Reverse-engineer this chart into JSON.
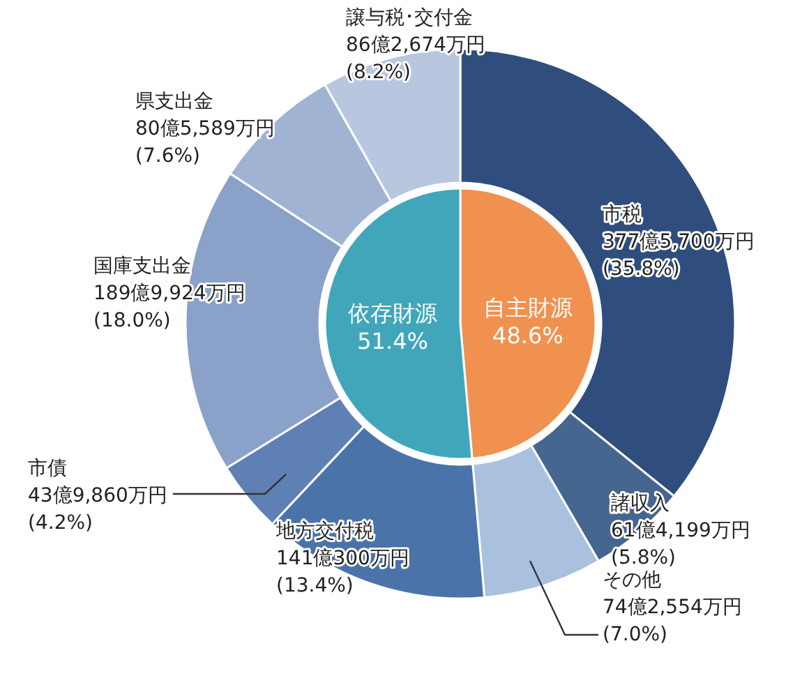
{
  "chart_data": [
    {
      "type": "donut",
      "categories": [
        "市税",
        "諸収入",
        "その他",
        "地方交付税",
        "市債",
        "国庫支出金",
        "県支出金",
        "譲与税･交付金"
      ],
      "values": [
        35.8,
        5.8,
        7.0,
        13.4,
        4.2,
        18.0,
        7.6,
        8.2
      ],
      "colors": [
        "#2f4e7e",
        "#45668f",
        "#a9c1de",
        "#4a74a9",
        "#5f80b4",
        "#8aa1c9",
        "#a0b3d3",
        "#b9c6df"
      ],
      "value_labels": [
        "377億5,700万円\n(35.8%)",
        "61億4,199万円\n(5.8%)",
        "74億2,554万円\n(7.0%)",
        "141億300万円\n(13.4%)",
        "43億9,860万円\n(4.2%)",
        "189億9,924万円\n(18.0%)",
        "80億5,589万円\n(7.6%)",
        "86億2,674万円\n(8.2%)"
      ]
    },
    {
      "type": "pie",
      "categories": [
        "自主財源",
        "依存財源"
      ],
      "values": [
        48.6,
        51.4
      ],
      "colors": [
        "#f0914f",
        "#42a6ba"
      ],
      "value_labels": [
        "48.6%",
        "51.4%"
      ]
    }
  ]
}
